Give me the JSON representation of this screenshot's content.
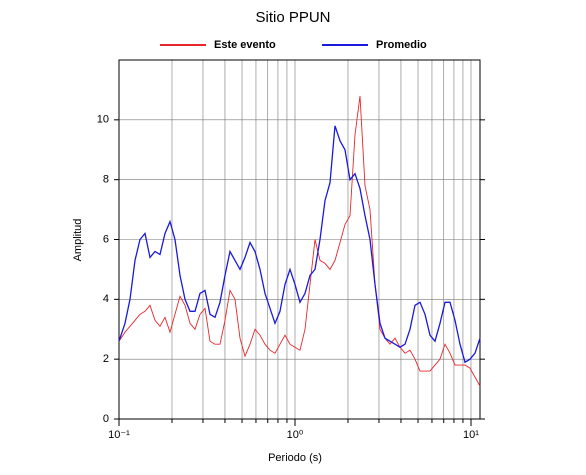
{
  "chart_data": {
    "type": "line",
    "title": "Sitio PPUN",
    "xlabel": "Periodo (s)",
    "ylabel": "Amplitud",
    "log_x": true,
    "grid": true,
    "xlim": [
      0.1,
      11.25
    ],
    "ylim": [
      0,
      12
    ],
    "xticks": [
      {
        "value": 0.1,
        "label": "10⁻¹"
      },
      {
        "value": 1,
        "label": "10⁰"
      },
      {
        "value": 10,
        "label": "10¹"
      }
    ],
    "xminorticks": [
      0.2,
      0.3,
      0.4,
      0.5,
      0.6,
      0.7,
      0.8,
      0.9,
      2,
      3,
      4,
      5,
      6,
      7,
      8,
      9
    ],
    "yticks": [
      0,
      2,
      4,
      6,
      8,
      10
    ],
    "x": [
      0.1,
      0.1082,
      0.1155,
      0.1233,
      0.1316,
      0.1405,
      0.15,
      0.1602,
      0.171,
      0.1826,
      0.1949,
      0.2081,
      0.2222,
      0.2371,
      0.2532,
      0.2703,
      0.2885,
      0.3081,
      0.3289,
      0.3511,
      0.3749,
      0.4002,
      0.4272,
      0.4561,
      0.487,
      0.5199,
      0.555,
      0.5925,
      0.6326,
      0.6754,
      0.7211,
      0.7698,
      0.8219,
      0.8774,
      0.9367,
      1,
      1.068,
      1.14,
      1.217,
      1.299,
      1.387,
      1.481,
      1.581,
      1.688,
      1.802,
      1.923,
      2.054,
      2.192,
      2.34,
      2.499,
      2.668,
      2.848,
      3.041,
      3.246,
      3.466,
      3.7,
      3.95,
      4.217,
      4.502,
      4.806,
      5.131,
      5.478,
      5.848,
      6.244,
      6.666,
      7.117,
      7.598,
      8.111,
      8.66,
      9.245,
      9.87,
      10.54,
      11.25
    ],
    "series": [
      {
        "name": "Este evento",
        "color": "#e8262a",
        "values": [
          2.6,
          2.9,
          3.1,
          3.3,
          3.5,
          3.6,
          3.8,
          3.3,
          3.1,
          3.4,
          2.9,
          3.5,
          4.1,
          3.8,
          3.2,
          3.0,
          3.5,
          3.7,
          2.6,
          2.5,
          2.5,
          3.3,
          4.3,
          4.0,
          2.7,
          2.1,
          2.5,
          3.0,
          2.8,
          2.5,
          2.3,
          2.2,
          2.5,
          2.8,
          2.5,
          2.4,
          2.3,
          3.0,
          4.5,
          6.0,
          5.3,
          5.2,
          5.0,
          5.3,
          5.9,
          6.5,
          6.8,
          9.5,
          10.8,
          7.8,
          7.0,
          4.5,
          3.0,
          2.7,
          2.5,
          2.7,
          2.4,
          2.2,
          2.3,
          2.0,
          1.6,
          1.6,
          1.6,
          1.8,
          2.0,
          2.5,
          2.2,
          1.8,
          1.8,
          1.8,
          1.7,
          1.4,
          1.1
        ]
      },
      {
        "name": "Promedio",
        "color": "#1a1adc",
        "values": [
          2.6,
          3.2,
          4.0,
          5.3,
          6.0,
          6.2,
          5.4,
          5.6,
          5.5,
          6.2,
          6.6,
          6.0,
          4.8,
          4.0,
          3.6,
          3.6,
          4.2,
          4.3,
          3.5,
          3.4,
          3.9,
          4.8,
          5.6,
          5.3,
          5.0,
          5.4,
          5.9,
          5.6,
          5.0,
          4.2,
          3.7,
          3.2,
          3.6,
          4.5,
          5.0,
          4.5,
          3.9,
          4.2,
          4.8,
          5.0,
          6.0,
          7.3,
          7.9,
          9.8,
          9.3,
          9.0,
          8.0,
          8.2,
          7.7,
          6.8,
          6.0,
          4.5,
          3.2,
          2.7,
          2.6,
          2.5,
          2.4,
          2.5,
          3.0,
          3.8,
          3.9,
          3.5,
          2.8,
          2.6,
          3.2,
          3.9,
          3.9,
          3.3,
          2.5,
          1.9,
          2.0,
          2.2,
          2.7
        ]
      }
    ]
  }
}
